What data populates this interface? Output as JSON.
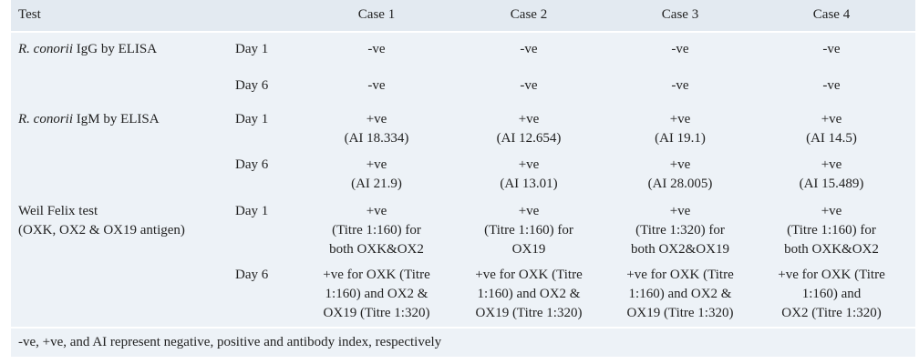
{
  "header": {
    "test": "Test",
    "cases": [
      "Case 1",
      "Case 2",
      "Case 3",
      "Case 4"
    ]
  },
  "rows": [
    {
      "italic": "R. conorii",
      "test": [
        " IgG by ELISA"
      ],
      "days": [
        {
          "day": "Day 1",
          "cases": [
            [
              "-ve"
            ],
            [
              "-ve"
            ],
            [
              "-ve"
            ],
            [
              "-ve"
            ]
          ]
        },
        {
          "day": "Day 6",
          "cases": [
            [
              "-ve"
            ],
            [
              "-ve"
            ],
            [
              "-ve"
            ],
            [
              "-ve"
            ]
          ]
        }
      ]
    },
    {
      "italic": "R. conorii",
      "test": [
        " IgM by ELISA"
      ],
      "days": [
        {
          "day": "Day 1",
          "cases": [
            [
              "+ve",
              "(AI 18.334)"
            ],
            [
              "+ve",
              "(AI 12.654)"
            ],
            [
              "+ve",
              "(AI 19.1)"
            ],
            [
              "+ve",
              "(AI 14.5)"
            ]
          ]
        },
        {
          "day": "Day 6",
          "cases": [
            [
              "+ve",
              "(AI 21.9)"
            ],
            [
              "+ve",
              "(AI 13.01)"
            ],
            [
              "+ve",
              "(AI 28.005)"
            ],
            [
              "+ve",
              "(AI 15.489)"
            ]
          ]
        }
      ]
    },
    {
      "test": [
        "Weil Felix test",
        "(OXK, OX2 & OX19 antigen)"
      ],
      "days": [
        {
          "day": "Day 1",
          "cases": [
            [
              "+ve",
              "(Titre 1:160) for",
              "both OXK&OX2"
            ],
            [
              "+ve",
              "(Titre 1:160) for",
              "OX19"
            ],
            [
              "+ve",
              "(Titre 1:320) for",
              "both OX2&OX19"
            ],
            [
              "+ve",
              "(Titre 1:160) for",
              "both OXK&OX2"
            ]
          ]
        },
        {
          "day": "Day 6",
          "cases": [
            [
              "+ve for OXK (Titre",
              "1:160) and OX2 &",
              "OX19 (Titre 1:320)"
            ],
            [
              "+ve for OXK (Titre",
              "1:160) and OX2 &",
              "OX19 (Titre 1:320)"
            ],
            [
              "+ve for OXK (Titre",
              "1:160) and OX2 &",
              "OX19 (Titre 1:320)"
            ],
            [
              "+ve for OXK (Titre",
              "1:160) and",
              "OX2 (Titre 1:320)"
            ]
          ]
        }
      ]
    }
  ],
  "footnote": "-ve, +ve, and AI represent negative, positive and antibody index, respectively"
}
